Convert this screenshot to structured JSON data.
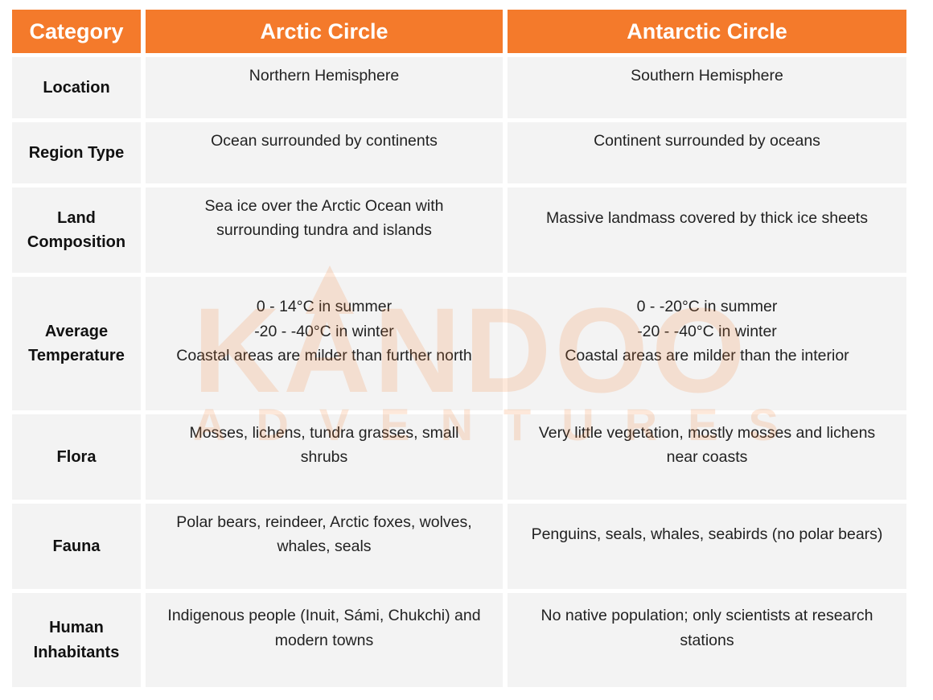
{
  "header": {
    "category": "Category",
    "arctic": "Arctic Circle",
    "antarctic": "Antarctic Circle"
  },
  "rows": [
    {
      "category": [
        "Location"
      ],
      "arctic": [
        "Northern Hemisphere"
      ],
      "antarctic": [
        "Southern Hemisphere"
      ]
    },
    {
      "category": [
        "Region Type"
      ],
      "arctic": [
        "Ocean surrounded by continents"
      ],
      "antarctic": [
        "Continent surrounded by oceans"
      ]
    },
    {
      "category": [
        "Land",
        "Composition"
      ],
      "arctic": [
        "Sea ice over the Arctic Ocean with",
        "surrounding tundra and islands"
      ],
      "antarctic": [
        "Massive landmass covered by thick ice sheets"
      ]
    },
    {
      "category": [
        "Average",
        "Temperature"
      ],
      "arctic": [
        "0 - 14°C in summer",
        "-20 - -40°C in winter",
        "Coastal areas are milder than further north"
      ],
      "antarctic": [
        "0 - -20°C in summer",
        "-20 - -40°C in winter",
        "Coastal areas are milder than the interior"
      ]
    },
    {
      "category": [
        "Flora"
      ],
      "arctic": [
        "Mosses, lichens, tundra grasses, small",
        "shrubs"
      ],
      "antarctic": [
        "Very little vegetation, mostly mosses and lichens",
        "near coasts"
      ]
    },
    {
      "category": [
        "Fauna"
      ],
      "arctic": [
        "Polar bears, reindeer, Arctic foxes, wolves,",
        "whales, seals"
      ],
      "antarctic": [
        "Penguins, seals, whales, seabirds (no polar bears)"
      ]
    },
    {
      "category": [
        "Human",
        "Inhabitants"
      ],
      "arctic": [
        "Indigenous people (Inuit, Sámi, Chukchi) and",
        "modern towns"
      ],
      "antarctic": [
        "No native population; only scientists at research",
        "stations"
      ]
    }
  ],
  "watermark": {
    "line1": "KANDOO",
    "line2": "ADVENTURES"
  },
  "colors": {
    "header_bg": "#f47a2b",
    "cell_bg": "#f3f3f3"
  }
}
